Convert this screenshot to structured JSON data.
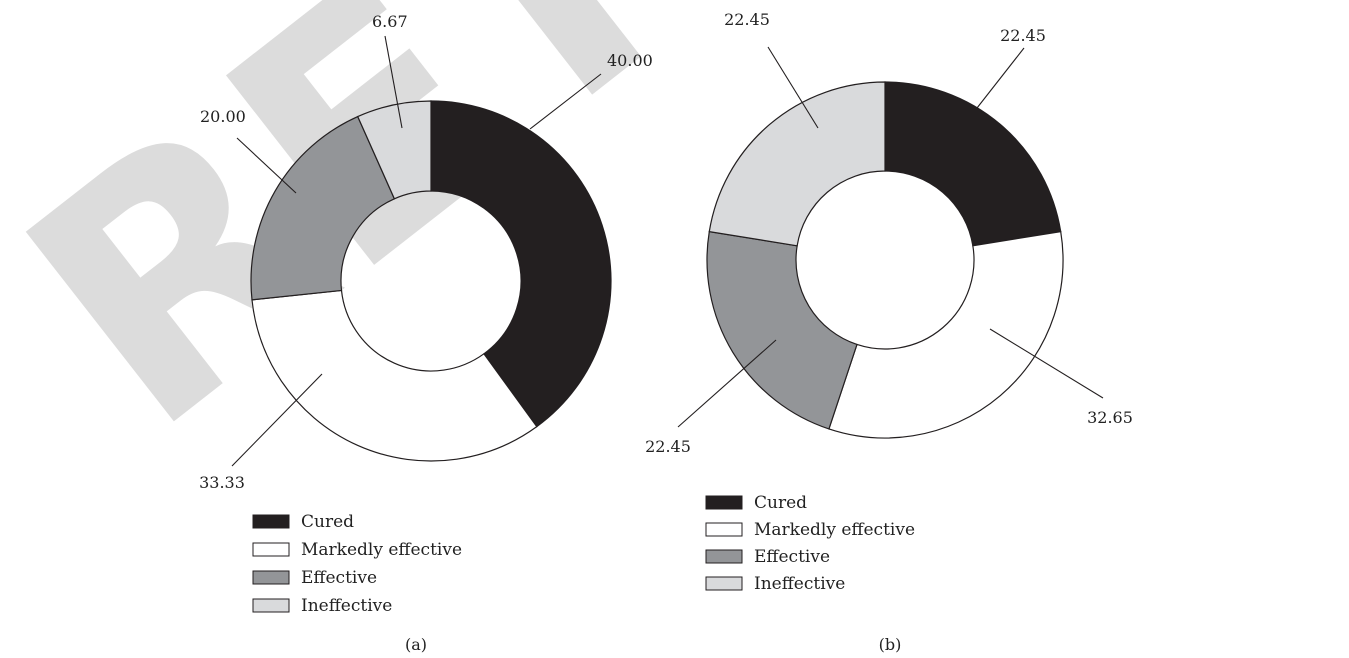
{
  "watermark": "RETRACTED",
  "colors": {
    "Cured": "#231f20",
    "Markedly effective": "#ffffff",
    "Effective": "#939598",
    "Ineffective": "#d9dadc",
    "stroke": "#231f20",
    "watermark": "#dcdcdc"
  },
  "chart_data": [
    {
      "type": "pie",
      "variant": "donut",
      "panel_label": "(a)",
      "categories": [
        "Cured",
        "Markedly effective",
        "Effective",
        "Ineffective"
      ],
      "values": [
        40.0,
        33.33,
        20.0,
        6.67
      ],
      "labels": [
        "40.00",
        "33.33",
        "20.00",
        "6.67"
      ],
      "legend": [
        "Cured",
        "Markedly effective",
        "Effective",
        "Ineffective"
      ],
      "legend_position": "bottom"
    },
    {
      "type": "pie",
      "variant": "donut",
      "panel_label": "(b)",
      "categories": [
        "Cured",
        "Markedly effective",
        "Effective",
        "Ineffective"
      ],
      "values": [
        22.45,
        32.65,
        22.45,
        22.45
      ],
      "labels": [
        "22.45",
        "32.65",
        "22.45",
        "22.45"
      ],
      "legend": [
        "Cured",
        "Markedly effective",
        "Effective",
        "Ineffective"
      ],
      "legend_position": "bottom"
    }
  ]
}
